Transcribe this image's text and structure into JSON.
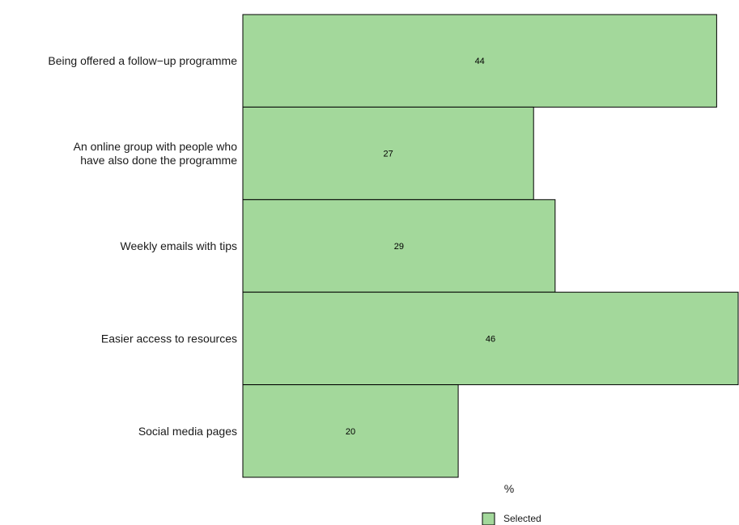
{
  "chart_data": {
    "type": "bar",
    "orientation": "horizontal",
    "categories": [
      [
        "Being offered a follow−up programme"
      ],
      [
        "An online group with people who",
        "have also done the programme"
      ],
      [
        "Weekly emails with tips"
      ],
      [
        "Easier access to resources"
      ],
      [
        "Social media pages"
      ]
    ],
    "series": [
      {
        "name": "Selected",
        "values": [
          44,
          27,
          29,
          46,
          20
        ],
        "color": "#a3d89b"
      }
    ],
    "xlabel": "%",
    "ylabel": "",
    "xlim": [
      0,
      46
    ],
    "grid": false,
    "legend": "bottom",
    "bar_outline_color": "#000000"
  }
}
